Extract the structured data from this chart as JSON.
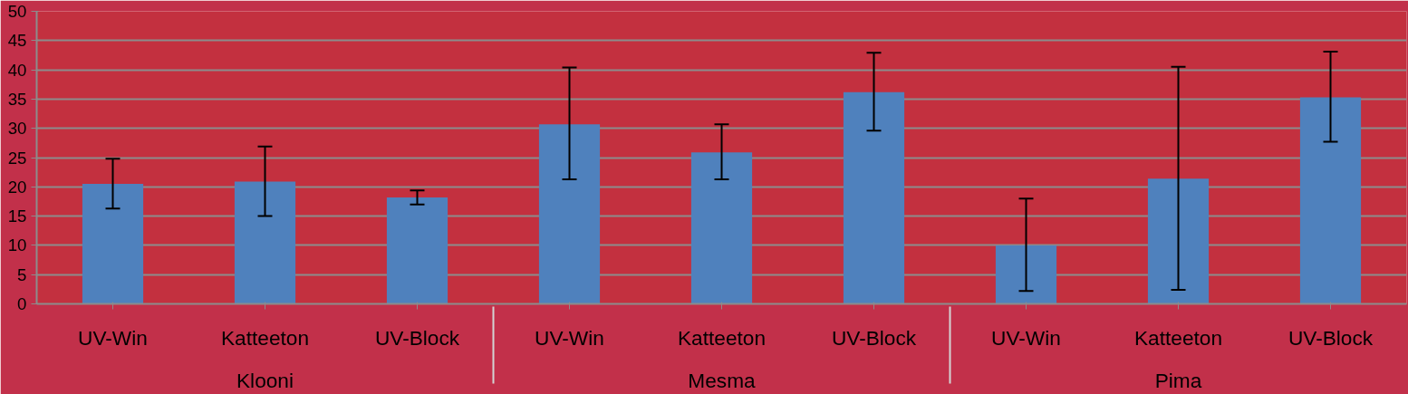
{
  "chart_data": {
    "type": "bar",
    "categories": [
      "UV-Win",
      "Katteeton",
      "UV-Block",
      "UV-Win",
      "Katteeton",
      "UV-Block",
      "UV-Win",
      "Katteeton",
      "UV-Block"
    ],
    "values": [
      20.5,
      20.9,
      18.2,
      30.7,
      25.9,
      36.2,
      10.0,
      21.4,
      35.3
    ],
    "errors": [
      [
        16.3,
        24.8
      ],
      [
        15.0,
        26.9
      ],
      [
        17.0,
        19.4
      ],
      [
        21.3,
        40.4
      ],
      [
        21.3,
        30.7
      ],
      [
        29.6,
        42.9
      ],
      [
        2.2,
        18.0
      ],
      [
        2.4,
        40.5
      ],
      [
        27.7,
        43.1
      ]
    ],
    "color": "#4f81bd",
    "annotations": [
      "Klooni",
      "Mesma",
      "Pima"
    ],
    "ylim": [
      0,
      50
    ],
    "yticks": [
      0,
      5,
      10,
      15,
      20,
      25,
      30,
      35,
      40,
      45,
      50
    ],
    "grid": "y"
  }
}
